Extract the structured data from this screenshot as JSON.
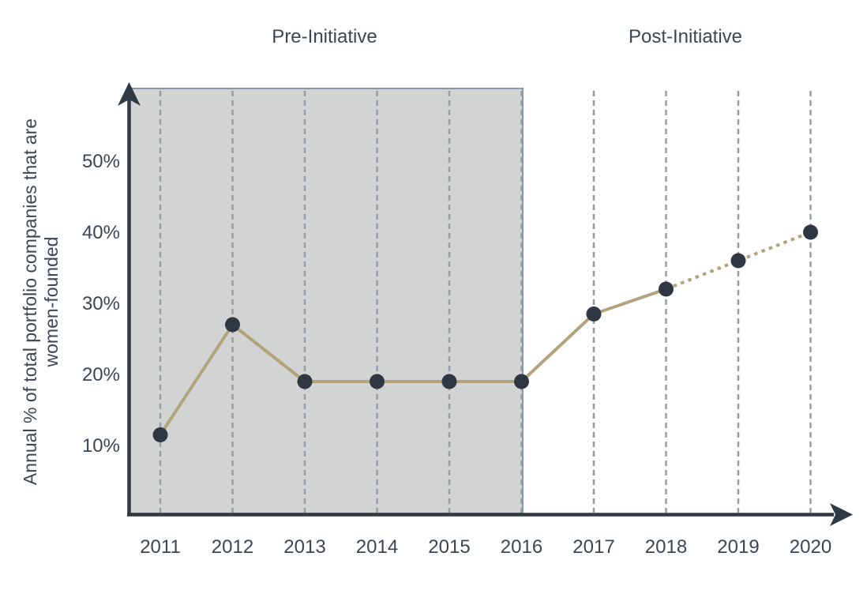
{
  "chart_data": {
    "type": "line",
    "period_labels": {
      "pre": "Pre-Initiative",
      "post": "Post-Initiative"
    },
    "ylabel": {
      "line1": "Annual % of total portfolio companies that are",
      "line2": "women-founded"
    },
    "x": [
      2011,
      2012,
      2013,
      2014,
      2015,
      2016,
      2017,
      2018,
      2019,
      2020
    ],
    "series": [
      {
        "name": "annual-percent-women-founded",
        "values": [
          11.5,
          27,
          19,
          19,
          19,
          19,
          28.5,
          32,
          36,
          40
        ],
        "style_segments": [
          {
            "from": 2011,
            "to": 2018,
            "style": "solid"
          },
          {
            "from": 2018,
            "to": 2020,
            "style": "dotted"
          }
        ]
      }
    ],
    "yticks": [
      10,
      20,
      30,
      40,
      50
    ],
    "ytick_suffix": "%",
    "ylim": [
      0,
      60
    ],
    "grid": "vertical-dashed",
    "legend_position": "none",
    "shaded_region": {
      "from_axis": true,
      "to": 2016,
      "label": "Pre-Initiative"
    },
    "colors": {
      "line": "#b3a37d",
      "point": "#2f3842",
      "axis": "#2f3a45",
      "grid": "#969da4",
      "region_fill": "#d2d3d3",
      "region_border": "#8399ac",
      "text": "#3c4650"
    }
  }
}
